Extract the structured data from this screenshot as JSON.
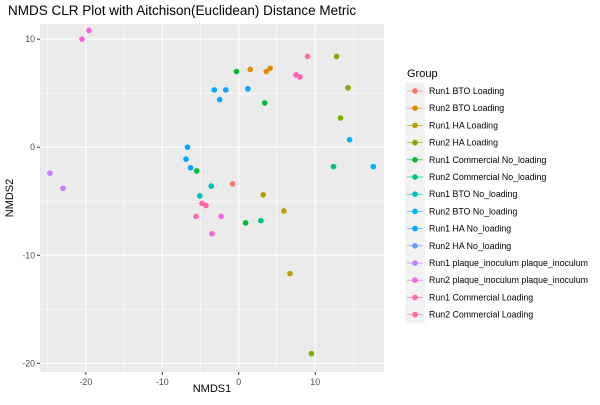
{
  "chart_data": {
    "type": "scatter",
    "title": "NMDS CLR Plot with Aitchison(Euclidean) Distance Metric",
    "xlabel": "NMDS1",
    "ylabel": "NMDS2",
    "xlim": [
      -26,
      19
    ],
    "ylim": [
      -20.8,
      11.4
    ],
    "x_ticks": [
      -20,
      -10,
      0,
      10
    ],
    "y_ticks": [
      -20,
      -10,
      0,
      10
    ],
    "x_tick_labels": [
      "-20",
      "-10",
      "0",
      "10"
    ],
    "y_tick_labels": [
      "-20",
      "-10",
      "0",
      "10"
    ],
    "grid": true,
    "legend_title": "Group",
    "legend_position": "right",
    "series": [
      {
        "name": "Run1 BTO Loading",
        "color": "#F8766D",
        "points": [
          [
            -0.8,
            -3.4
          ]
        ]
      },
      {
        "name": "Run2 BTO Loading",
        "color": "#DE8C00",
        "points": [
          [
            1.5,
            7.2
          ],
          [
            3.6,
            7.0
          ],
          [
            4.1,
            7.3
          ]
        ]
      },
      {
        "name": "Run1 HA Loading",
        "color": "#B79F00",
        "points": [
          [
            3.2,
            -4.4
          ],
          [
            5.9,
            -5.9
          ],
          [
            6.7,
            -11.7
          ]
        ]
      },
      {
        "name": "Run2 HA Loading",
        "color": "#7CAE00",
        "points": [
          [
            12.8,
            8.4
          ],
          [
            14.3,
            5.5
          ],
          [
            13.3,
            2.7
          ],
          [
            9.5,
            -19.1
          ]
        ]
      },
      {
        "name": "Run1 Commercial No_loading",
        "color": "#00BA38",
        "points": [
          [
            -0.3,
            7.0
          ],
          [
            3.4,
            4.1
          ],
          [
            -5.5,
            -2.2
          ],
          [
            0.9,
            -7.0
          ]
        ]
      },
      {
        "name": "Run2 Commercial No_loading",
        "color": "#00C08B",
        "points": [
          [
            12.4,
            -1.8
          ],
          [
            2.9,
            -6.8
          ]
        ]
      },
      {
        "name": "Run1 BTO No_loading",
        "color": "#00BFC4",
        "points": [
          [
            -3.6,
            -3.6
          ],
          [
            -5.1,
            -4.5
          ]
        ]
      },
      {
        "name": "Run2 BTO No_loading",
        "color": "#00B4F0",
        "points": [
          [
            17.6,
            -1.8
          ],
          [
            14.5,
            0.7
          ]
        ]
      },
      {
        "name": "Run1 HA No_loading",
        "color": "#00A9FF",
        "points": [
          [
            -6.7,
            0.0
          ],
          [
            -6.9,
            -1.1
          ],
          [
            -6.3,
            -1.9
          ],
          [
            1.2,
            5.4
          ],
          [
            -3.2,
            5.3
          ],
          [
            -2.5,
            4.4
          ],
          [
            -1.7,
            5.3
          ]
        ]
      },
      {
        "name": "Run2 HA No_loading",
        "color": "#619CFF",
        "points": []
      },
      {
        "name": "Run1 plaque_inoculum plaque_inoculum",
        "color": "#C77CFF",
        "points": [
          [
            -24.7,
            -2.4
          ],
          [
            -23.0,
            -3.8
          ]
        ]
      },
      {
        "name": "Run2 plaque_inoculum plaque_inoculum",
        "color": "#F564E3",
        "points": [
          [
            -20.5,
            10.0
          ],
          [
            -19.6,
            10.8
          ],
          [
            -2.3,
            -6.4
          ],
          [
            -3.5,
            -8.0
          ]
        ]
      },
      {
        "name": "Run1 Commercial Loading",
        "color": "#FF64B0",
        "points": [
          [
            -5.6,
            -6.4
          ],
          [
            -4.8,
            -5.2
          ],
          [
            -4.3,
            -5.4
          ],
          [
            7.5,
            6.7
          ],
          [
            8.0,
            6.5
          ]
        ]
      },
      {
        "name": "Run2 Commercial Loading",
        "color": "#FF6C91",
        "points": [
          [
            9.0,
            8.4
          ]
        ]
      }
    ]
  }
}
